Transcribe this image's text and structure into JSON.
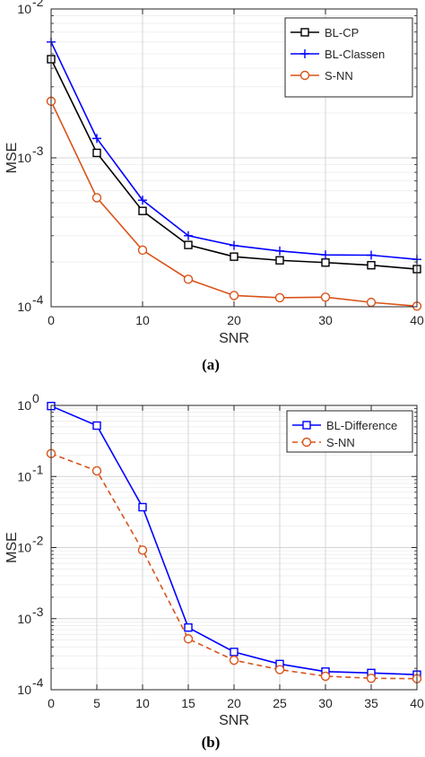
{
  "colors": {
    "black": "#000000",
    "blue": "#0000ff",
    "orange": "#d95319",
    "grid": "#d4d4d4",
    "minorGrid": "#ececec"
  },
  "chart_data": [
    {
      "type": "line",
      "subfig_label": "(a)",
      "xlabel": "SNR",
      "ylabel": "MSE",
      "yscale": "log",
      "xlim": [
        0,
        40
      ],
      "ylim": [
        0.0001,
        0.01
      ],
      "xticks": [
        "0",
        "10",
        "20",
        "30",
        "40"
      ],
      "yticks": [
        {
          "base": "10",
          "exp": "-4"
        },
        {
          "base": "10",
          "exp": "-3"
        },
        {
          "base": "10",
          "exp": "-2"
        }
      ],
      "grid": true,
      "legend_position": "top-right",
      "x": [
        0,
        5,
        10,
        15,
        20,
        25,
        30,
        35,
        40
      ],
      "series": [
        {
          "name": "BL-CP",
          "color": "#000000",
          "marker": "square",
          "dash": "solid",
          "values": [
            0.0046,
            0.00108,
            0.00044,
            0.00026,
            0.000217,
            0.000205,
            0.000198,
            0.00019,
            0.000179
          ]
        },
        {
          "name": "BL-Classen",
          "color": "#0000ff",
          "marker": "plus",
          "dash": "solid",
          "values": [
            0.006,
            0.00135,
            0.00052,
            0.0003,
            0.000258,
            0.000237,
            0.000223,
            0.000222,
            0.000208
          ]
        },
        {
          "name": "S-NN",
          "color": "#d95319",
          "marker": "circle",
          "dash": "solid",
          "values": [
            0.0024,
            0.00054,
            0.00024,
            0.000153,
            0.000119,
            0.000115,
            0.000116,
            0.000107,
            0.000101
          ]
        }
      ]
    },
    {
      "type": "line",
      "subfig_label": "(b)",
      "xlabel": "SNR",
      "ylabel": "MSE",
      "yscale": "log",
      "xlim": [
        0,
        40
      ],
      "ylim": [
        0.0001,
        1
      ],
      "xticks": [
        "0",
        "5",
        "10",
        "15",
        "20",
        "25",
        "30",
        "35",
        "40"
      ],
      "yticks": [
        {
          "base": "10",
          "exp": "-4"
        },
        {
          "base": "10",
          "exp": "-3"
        },
        {
          "base": "10",
          "exp": "-2"
        },
        {
          "base": "10",
          "exp": "-1"
        },
        {
          "base": "10",
          "exp": "0"
        }
      ],
      "grid": true,
      "legend_position": "top-right",
      "x": [
        0,
        5,
        10,
        15,
        20,
        25,
        30,
        35,
        40
      ],
      "series": [
        {
          "name": "BL-Difference",
          "color": "#0000ff",
          "marker": "square",
          "dash": "solid",
          "values": [
            0.98,
            0.52,
            0.037,
            0.00075,
            0.00034,
            0.00023,
            0.00018,
            0.000172,
            0.000163
          ]
        },
        {
          "name": "S-NN",
          "color": "#d95319",
          "marker": "circle",
          "dash": "dashed",
          "values": [
            0.21,
            0.12,
            0.0092,
            0.00052,
            0.00026,
            0.000192,
            0.000155,
            0.000145,
            0.000143
          ]
        }
      ]
    }
  ]
}
